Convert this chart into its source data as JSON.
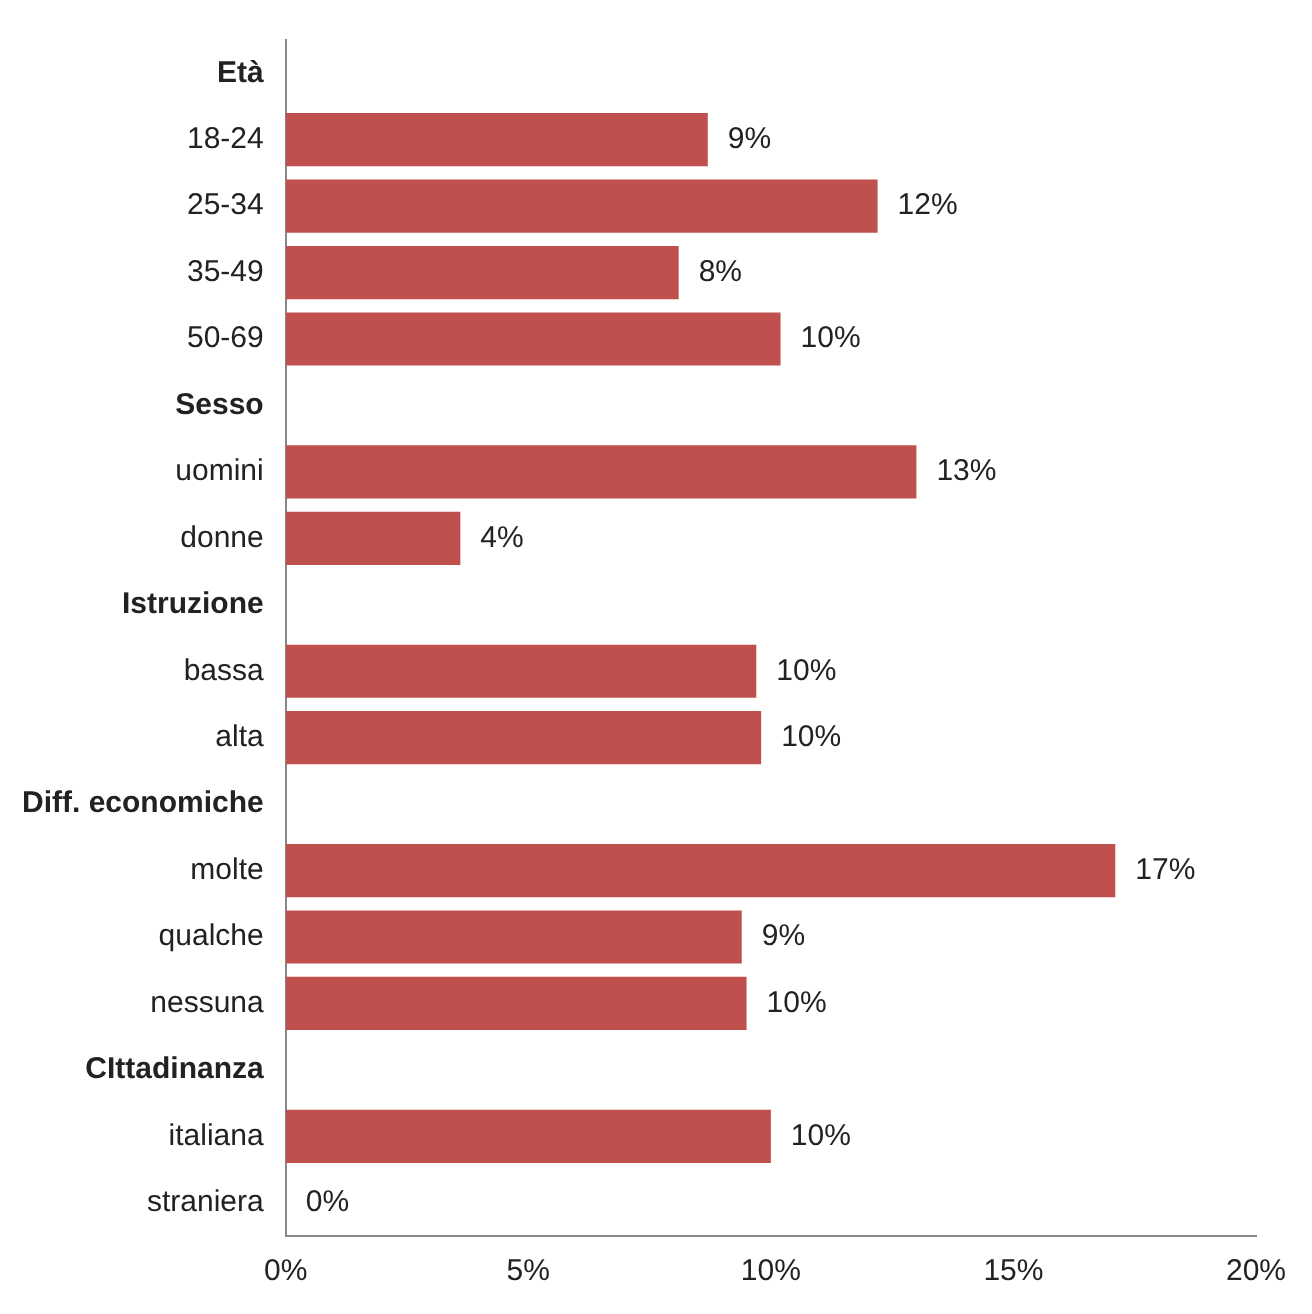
{
  "chart_data": {
    "type": "bar",
    "orientation": "horizontal",
    "categories": [
      "Età",
      "18-24",
      "25-34",
      "35-49",
      "50-69",
      "Sesso",
      "uomini",
      "donne",
      "Istruzione",
      "bassa",
      "alta",
      "Diff. economiche",
      "molte",
      "qualche",
      "nessuna",
      "CIttadinanza",
      "italiana",
      "straniera"
    ],
    "values": [
      null,
      8.7,
      12.2,
      8.1,
      10.2,
      null,
      13.0,
      3.6,
      null,
      9.7,
      9.8,
      null,
      17.1,
      9.4,
      9.5,
      null,
      10.0,
      0
    ],
    "value_labels": [
      null,
      "9%",
      "12%",
      "8%",
      "10%",
      null,
      "13%",
      "4%",
      null,
      "10%",
      "10%",
      null,
      "17%",
      "9%",
      "10%",
      null,
      "10%",
      "0%"
    ],
    "color": "#c0504d",
    "xlim": [
      0,
      20
    ],
    "xticks": [
      {
        "value": 0,
        "label": "0%"
      },
      {
        "value": 5,
        "label": "5%"
      },
      {
        "value": 10,
        "label": "10%"
      },
      {
        "value": 15,
        "label": "15%"
      },
      {
        "value": 20,
        "label": "20%"
      }
    ],
    "grid": false,
    "legend": false
  }
}
